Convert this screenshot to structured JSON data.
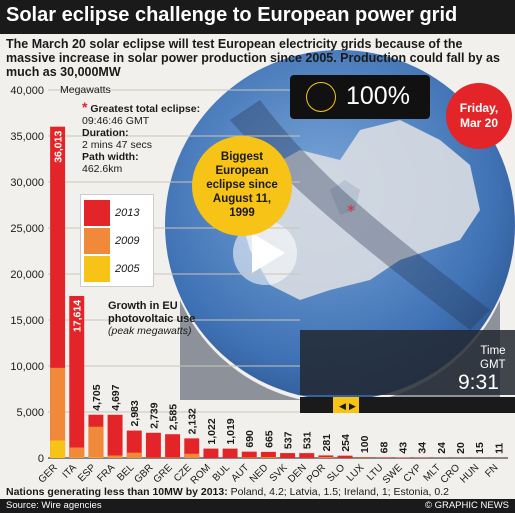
{
  "title": "Solar eclipse challenge to European power grid",
  "intro": "The March 20 solar eclipse will test European electricity grids because of the massive increase in solar power production since 2005. Production could fall by as much as 30,000MW",
  "eclipse_info": {
    "greatest_label": "Greatest total eclipse:",
    "greatest_time": "09:46:46 GMT",
    "duration_label": "Duration:",
    "duration_value": "2 mins 47 secs",
    "path_label": "Path width:",
    "path_value": "462.6km"
  },
  "coverage": "100%",
  "date_badge": [
    "Friday,",
    "Mar 20"
  ],
  "yellow_badge": [
    "Biggest",
    "European",
    "eclipse since",
    "August 11,",
    "1999"
  ],
  "time_label": [
    "Time",
    "GMT"
  ],
  "time_value": "9:31",
  "growth_label": [
    "Growth in EU",
    "photovoltaic use"
  ],
  "growth_sub": "(peak megawatts)",
  "note_bold": "Nations generating less than 10MW by 2013:",
  "note_rest": " Poland, 4.2; Latvia, 1.5; Ireland, 1; Estonia, 0.2",
  "source": "Source: Wire agencies",
  "credit": "© GRAPHIC NEWS",
  "colors": {
    "s2013": "#e3252a",
    "s2009": "#f08a3a",
    "s2005": "#f7c316",
    "globe": "#4a7fc0",
    "dark": "#1a1a1a"
  },
  "chart_data": {
    "type": "bar",
    "ylabel": "Megawatts",
    "ylim": [
      0,
      40000
    ],
    "yticks": [
      "0",
      "5,000",
      "10,000",
      "15,000",
      "20,000",
      "25,000",
      "30,000",
      "35,000",
      "40,000"
    ],
    "categories": [
      "GER",
      "ITA",
      "ESP",
      "FRA",
      "BEL",
      "GBR",
      "GRE",
      "CZE",
      "ROM",
      "BUL",
      "AUT",
      "NED",
      "SVK",
      "DEN",
      "POR",
      "SLO",
      "LUX",
      "LTU",
      "SWE",
      "CYP",
      "MLT",
      "CRO",
      "HUN",
      "FN"
    ],
    "value_labels": [
      "36,013",
      "17,614",
      "4,705",
      "4,697",
      "2,983",
      "2,739",
      "2,585",
      "2,132",
      "1,022",
      "1,019",
      "690",
      "665",
      "537",
      "531",
      "281",
      "254",
      "100",
      "68",
      "43",
      "34",
      "24",
      "20",
      "15",
      "11"
    ],
    "series": [
      {
        "name": "2013",
        "values": [
          36013,
          17614,
          4705,
          4697,
          2983,
          2739,
          2585,
          2132,
          1022,
          1019,
          690,
          665,
          537,
          531,
          281,
          254,
          100,
          68,
          43,
          34,
          24,
          20,
          15,
          11
        ]
      },
      {
        "name": "2009",
        "values": [
          9800,
          1140,
          3400,
          270,
          580,
          25,
          55,
          460,
          0,
          0,
          50,
          70,
          0,
          0,
          100,
          0,
          25,
          0,
          0,
          0,
          0,
          0,
          0,
          0
        ]
      },
      {
        "name": "2005",
        "values": [
          1900,
          40,
          60,
          20,
          10,
          10,
          5,
          0,
          0,
          0,
          20,
          50,
          0,
          3,
          3,
          0,
          20,
          0,
          0,
          0,
          0,
          0,
          0,
          0
        ]
      }
    ]
  }
}
